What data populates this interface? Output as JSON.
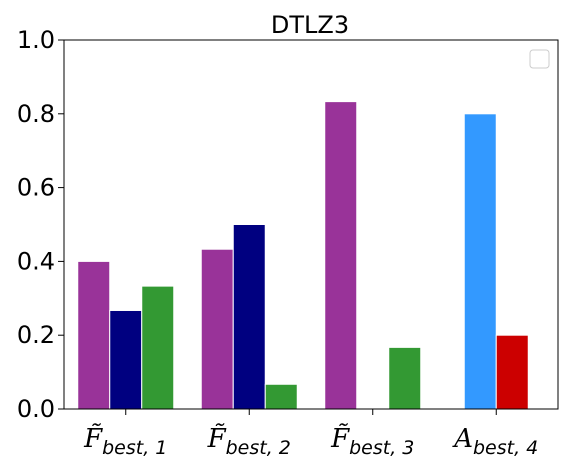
{
  "chart_data": {
    "type": "bar",
    "title": "DTLZ3",
    "xlabel": "",
    "ylabel": "",
    "ylim": [
      0,
      1.0
    ],
    "yticks": [
      "0.0",
      "0.2",
      "0.4",
      "0.6",
      "0.8",
      "1.0"
    ],
    "categories": [
      {
        "main": "F̃",
        "sub": "best, 1"
      },
      {
        "main": "F̃",
        "sub": "best, 2"
      },
      {
        "main": "F̃",
        "sub": "best, 3"
      },
      {
        "main": "A",
        "sub": "best, 4"
      }
    ],
    "groups": [
      {
        "bars": [
          {
            "value": 0.4,
            "color": "#993399"
          },
          {
            "value": 0.267,
            "color": "#000080"
          },
          {
            "value": 0.333,
            "color": "#339933"
          }
        ]
      },
      {
        "bars": [
          {
            "value": 0.433,
            "color": "#993399"
          },
          {
            "value": 0.5,
            "color": "#000080"
          },
          {
            "value": 0.067,
            "color": "#339933"
          }
        ]
      },
      {
        "bars": [
          {
            "value": 0.833,
            "color": "#993399"
          },
          {
            "value": 0.0,
            "color": "#000080"
          },
          {
            "value": 0.167,
            "color": "#339933"
          }
        ]
      },
      {
        "bars": [
          {
            "value": 0.8,
            "color": "#3399FF"
          },
          {
            "value": 0.2,
            "color": "#CC0000"
          }
        ]
      }
    ],
    "grid": false,
    "legend": "top-right",
    "legend_entries": []
  }
}
